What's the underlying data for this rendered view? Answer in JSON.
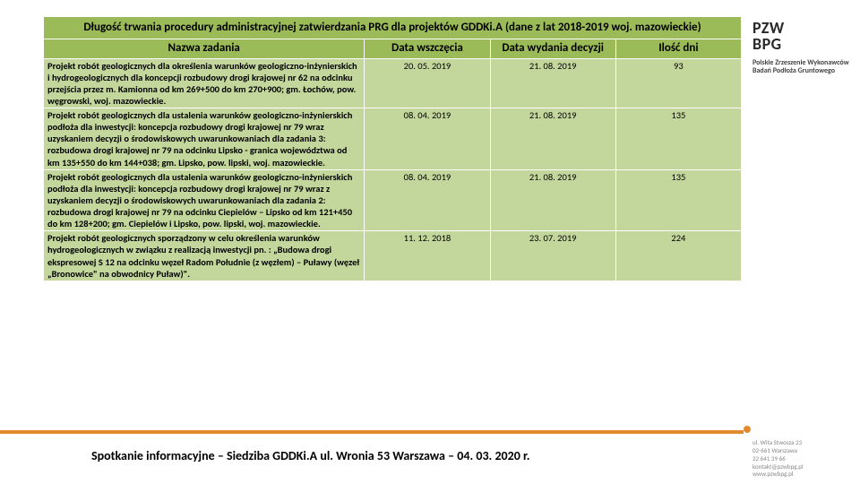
{
  "table": {
    "title": "Długość trwania procedury administracyjnej zatwierdzania PRG dla projektów GDDKi.A (dane z lat 2018-2019 woj. mazowieckie)",
    "columns": [
      "Nazwa zadania",
      "Data wszczęcia",
      "Data wydania decyzji",
      "Ilość dni"
    ],
    "rows": [
      {
        "name": "Projekt robót geologicznych dla określenia warunków geologiczno-inżynierskich i hydrogeologicznych dla koncepcji rozbudowy drogi krajowej nr 62 na odcinku przejścia przez m. Kamionna od km 269+500 do km 270+900; gm. Łochów, pow. węgrowski, woj. mazowieckie.",
        "start": "20. 05. 2019",
        "end": "21. 08. 2019",
        "days": "93"
      },
      {
        "name": "Projekt robót geologicznych dla ustalenia warunków geologiczno-inżynierskich podłoża dla inwestycji: koncepcja rozbudowy drogi krajowej nr 79 wraz uzyskaniem decyzji o środowiskowych uwarunkowaniach dla zadania 3: rozbudowa drogi krajowej nr 79 na odcinku Lipsko - granica województwa od km 135+550 do km 144+038; gm. Lipsko, pow. lipski, woj. mazowieckie.",
        "start": "08. 04. 2019",
        "end": "21. 08. 2019",
        "days": "135"
      },
      {
        "name": "Projekt robót geologicznych dla ustalenia warunków geologiczno-inżynierskich podłoża dla inwestycji: koncepcja rozbudowy drogi krajowej nr 79 wraz z uzyskaniem decyzji o środowiskowych uwarunkowaniach dla zadania 2: rozbudowa drogi krajowej nr 79 na odcinku Ciepielów – Lipsko od km 121+450 do km 128+200; gm. Ciepielów i Lipsko, pow. lipski, woj. mazowieckie.",
        "start": "08. 04. 2019",
        "end": "21. 08. 2019",
        "days": "135"
      },
      {
        "name": "Projekt robót geologicznych sporządzony w celu określenia warunków hydrogeologicznych w związku z realizacją inwestycji pn. : „Budowa drogi ekspresowej S 12 na odcinku węzeł Radom Południe (z węzłem) – Puławy (węzeł „Bronowice\" na obwodnicy Puław)\".",
        "start": "11. 12. 2018",
        "end": "23. 07. 2019",
        "days": "224"
      }
    ]
  },
  "footer": "Spotkanie informacyjne – Siedziba GDDKi.A ul. Wronia 53 Warszawa – 04. 03. 2020 r.",
  "org": {
    "logo_line1": "PZW",
    "logo_line2": "BPG",
    "name": "Polskie Zrzeszenie Wykonawców Badań Podłoża Gruntowego",
    "addr1": "ul. Wita Stwosza 23",
    "addr2": "02-661 Warszawa",
    "phone": "22 641 39 66",
    "email": "kontakt@pzwbpg.pl",
    "web": "www.pzwbpg.pl"
  },
  "colors": {
    "header_bg": "#9bbb59",
    "cell_bg": "#c3d69b",
    "accent": "#e1892d",
    "border": "#ffffff",
    "text": "#000000"
  }
}
